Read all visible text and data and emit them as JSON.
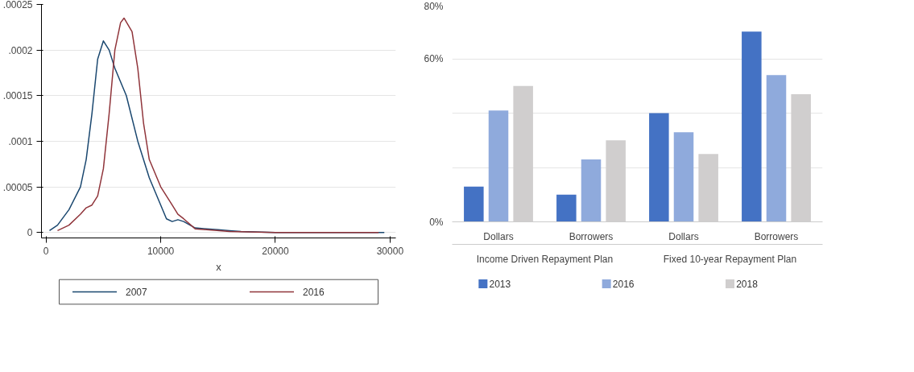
{
  "chart_data": [
    {
      "type": "line",
      "xlabel": "x",
      "xlim": [
        -400,
        30500
      ],
      "ylim": [
        -6e-06,
        0.00025
      ],
      "xticks": [
        0,
        10000,
        20000,
        30000
      ],
      "yticks": [
        0,
        {
          "value": 5e-05,
          "label": ".00005"
        },
        {
          "value": 0.0001,
          "label": ".0001"
        },
        {
          "value": 0.00015,
          "label": ".00015"
        },
        {
          "value": 0.0002,
          "label": ".0002"
        },
        {
          "value": 0.00025,
          "label": ".00025"
        }
      ],
      "grid": "y",
      "legend": "bottom",
      "series": [
        {
          "name": "2007",
          "color": "#1a476f",
          "x": [
            300,
            1000,
            2000,
            3000,
            3500,
            4000,
            4500,
            5000,
            5500,
            6000,
            7000,
            8000,
            9000,
            10000,
            10500,
            11000,
            11500,
            12000,
            13000,
            14000,
            15000,
            16000,
            17000,
            20000,
            29500
          ],
          "values": [
            2e-06,
            8e-06,
            2.5e-05,
            5e-05,
            8e-05,
            0.00013,
            0.00019,
            0.00021,
            0.0002,
            0.00018,
            0.00015,
            0.0001,
            6e-05,
            3e-05,
            1.5e-05,
            1.2e-05,
            1.4e-05,
            1.2e-05,
            5e-06,
            4e-06,
            3e-06,
            2e-06,
            1e-06,
            0,
            0
          ]
        },
        {
          "name": "2016",
          "color": "#90353b",
          "x": [
            1000,
            2000,
            3000,
            3500,
            4000,
            4500,
            5000,
            5500,
            6000,
            6500,
            6800,
            7500,
            8000,
            8500,
            9000,
            10000,
            11000,
            11500,
            12000,
            13000,
            14000,
            16000,
            20000,
            25000,
            29000
          ],
          "values": [
            2e-06,
            8e-06,
            2e-05,
            2.7e-05,
            3e-05,
            4e-05,
            7e-05,
            0.00013,
            0.0002,
            0.00023,
            0.000235,
            0.00022,
            0.00018,
            0.00012,
            8e-05,
            5e-05,
            3e-05,
            2e-05,
            1.5e-05,
            4e-06,
            3e-06,
            1e-06,
            0,
            0,
            0
          ]
        }
      ]
    },
    {
      "type": "bar",
      "categories": [
        "Dollars",
        "Borrowers",
        "Dollars",
        "Borrowers"
      ],
      "annotations": [
        "Income Driven Repayment Plan",
        "Fixed 10-year Repayment Plan"
      ],
      "ylim": [
        0,
        80
      ],
      "yticks": [
        {
          "value": 0,
          "label": "0%"
        },
        {
          "value": 20,
          "label": null
        },
        {
          "value": 40,
          "label": null
        },
        {
          "value": 60,
          "label": "60%"
        },
        {
          "value": 80,
          "label": "80%"
        }
      ],
      "grid": "y",
      "legend": "bottom",
      "series": [
        {
          "name": "2013",
          "color": "#4472c4",
          "values": [
            13,
            10,
            40,
            70
          ]
        },
        {
          "name": "2016",
          "color": "#8faadc",
          "values": [
            41,
            23,
            33,
            54
          ]
        },
        {
          "name": "2018",
          "color": "#d0cece",
          "values": [
            50,
            30,
            25,
            47
          ]
        }
      ]
    }
  ]
}
